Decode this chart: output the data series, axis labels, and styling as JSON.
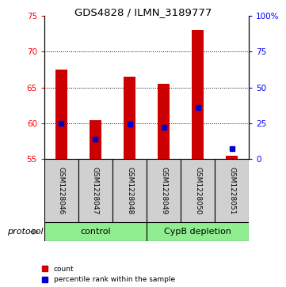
{
  "title": "GDS4828 / ILMN_3189777",
  "samples": [
    "GSM1228046",
    "GSM1228047",
    "GSM1228048",
    "GSM1228049",
    "GSM1228050",
    "GSM1228051"
  ],
  "red_values": [
    67.5,
    60.5,
    66.5,
    65.5,
    73.0,
    55.5
  ],
  "blue_values": [
    60.0,
    57.8,
    59.9,
    59.5,
    62.2,
    56.5
  ],
  "ylim_left": [
    55,
    75
  ],
  "ylim_right": [
    0,
    100
  ],
  "yticks_left": [
    55,
    60,
    65,
    70,
    75
  ],
  "yticks_right": [
    0,
    25,
    50,
    75,
    100
  ],
  "ytick_labels_right": [
    "0",
    "25",
    "50",
    "75",
    "100%"
  ],
  "bar_color": "#cc0000",
  "marker_color": "#0000cc",
  "bar_width": 0.35,
  "grid_yticks": [
    60,
    65,
    70
  ],
  "sample_box_color": "#d0d0d0",
  "group_color": "#90EE90",
  "protocol_label": "protocol",
  "legend_count": "count",
  "legend_pct": "percentile rank within the sample"
}
